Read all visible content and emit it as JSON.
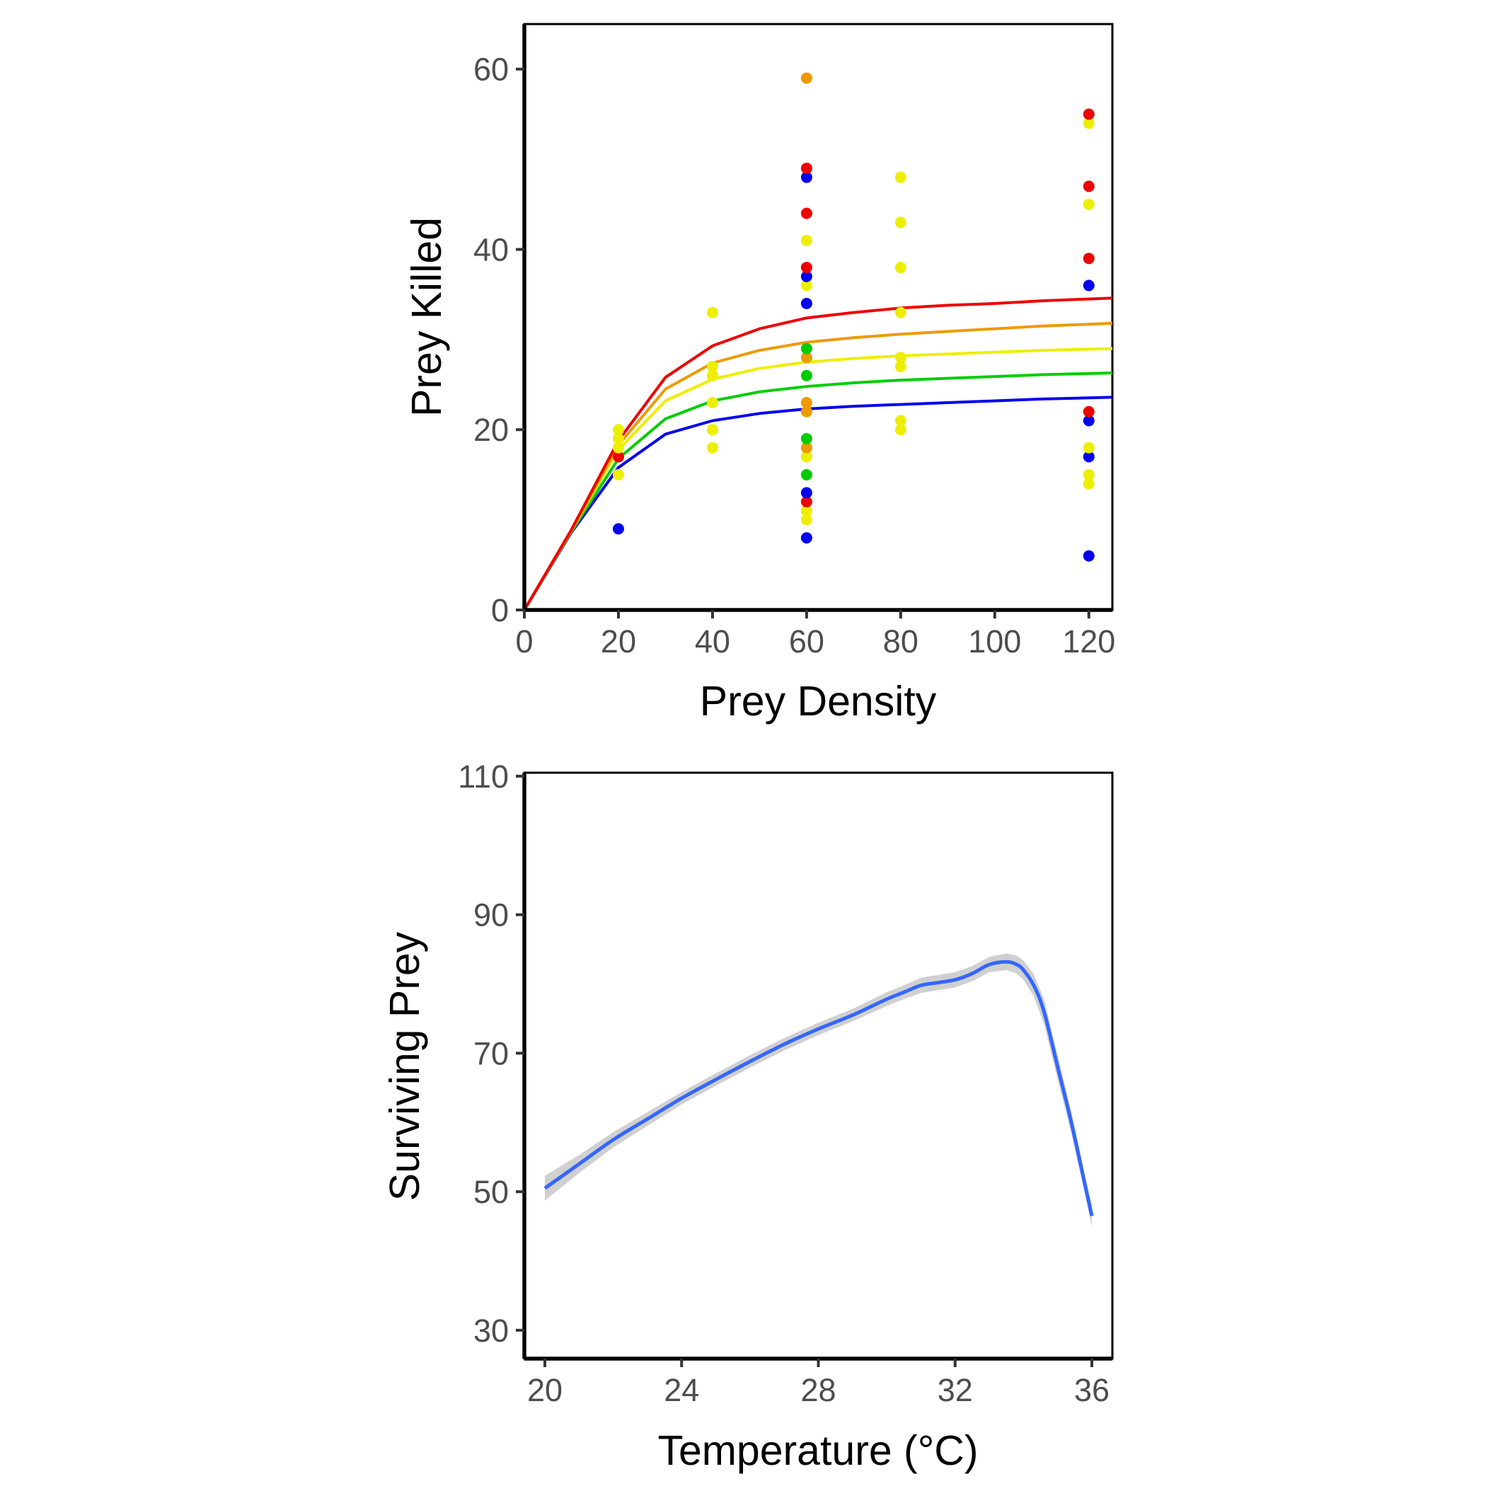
{
  "chart_data": [
    {
      "type": "scatter",
      "xlabel": "Prey Density",
      "ylabel": "Prey Killed",
      "xlim": [
        0,
        125
      ],
      "ylim": [
        0,
        65
      ],
      "xticks": [
        0,
        20,
        40,
        60,
        80,
        100,
        120
      ],
      "yticks": [
        0,
        20,
        40,
        60
      ],
      "grid": false,
      "legend": "none",
      "points": [
        {
          "x": 20,
          "y": 9,
          "color": "#0000ee"
        },
        {
          "x": 20,
          "y": 15,
          "color": "#eeee00"
        },
        {
          "x": 20,
          "y": 17,
          "color": "#ee0000"
        },
        {
          "x": 20,
          "y": 18,
          "color": "#eeee00"
        },
        {
          "x": 20,
          "y": 19,
          "color": "#eeee00"
        },
        {
          "x": 20,
          "y": 20,
          "color": "#eeee00"
        },
        {
          "x": 40,
          "y": 18,
          "color": "#eeee00"
        },
        {
          "x": 40,
          "y": 20,
          "color": "#eeee00"
        },
        {
          "x": 40,
          "y": 23,
          "color": "#eeee00"
        },
        {
          "x": 40,
          "y": 26,
          "color": "#eeee00"
        },
        {
          "x": 40,
          "y": 27,
          "color": "#eeee00"
        },
        {
          "x": 40,
          "y": 33,
          "color": "#eeee00"
        },
        {
          "x": 60,
          "y": 8,
          "color": "#0000ee"
        },
        {
          "x": 60,
          "y": 10,
          "color": "#eeee00"
        },
        {
          "x": 60,
          "y": 11,
          "color": "#eeee00"
        },
        {
          "x": 60,
          "y": 12,
          "color": "#ee0000"
        },
        {
          "x": 60,
          "y": 13,
          "color": "#0000ee"
        },
        {
          "x": 60,
          "y": 15,
          "color": "#00cd00"
        },
        {
          "x": 60,
          "y": 17,
          "color": "#eeee00"
        },
        {
          "x": 60,
          "y": 18,
          "color": "#ee9a00"
        },
        {
          "x": 60,
          "y": 19,
          "color": "#00cd00"
        },
        {
          "x": 60,
          "y": 22,
          "color": "#ee9a00"
        },
        {
          "x": 60,
          "y": 23,
          "color": "#ee9a00"
        },
        {
          "x": 60,
          "y": 26,
          "color": "#00cd00"
        },
        {
          "x": 60,
          "y": 28,
          "color": "#ee9a00"
        },
        {
          "x": 60,
          "y": 29,
          "color": "#00cd00"
        },
        {
          "x": 60,
          "y": 34,
          "color": "#0000ee"
        },
        {
          "x": 60,
          "y": 36,
          "color": "#eeee00"
        },
        {
          "x": 60,
          "y": 37,
          "color": "#0000ee"
        },
        {
          "x": 60,
          "y": 38,
          "color": "#ee0000"
        },
        {
          "x": 60,
          "y": 41,
          "color": "#eeee00"
        },
        {
          "x": 60,
          "y": 44,
          "color": "#ee0000"
        },
        {
          "x": 60,
          "y": 48,
          "color": "#0000ee"
        },
        {
          "x": 60,
          "y": 49,
          "color": "#ee0000"
        },
        {
          "x": 60,
          "y": 59,
          "color": "#ee9a00"
        },
        {
          "x": 80,
          "y": 20,
          "color": "#eeee00"
        },
        {
          "x": 80,
          "y": 21,
          "color": "#eeee00"
        },
        {
          "x": 80,
          "y": 27,
          "color": "#eeee00"
        },
        {
          "x": 80,
          "y": 28,
          "color": "#eeee00"
        },
        {
          "x": 80,
          "y": 33,
          "color": "#eeee00"
        },
        {
          "x": 80,
          "y": 38,
          "color": "#eeee00"
        },
        {
          "x": 80,
          "y": 43,
          "color": "#eeee00"
        },
        {
          "x": 80,
          "y": 48,
          "color": "#eeee00"
        },
        {
          "x": 120,
          "y": 6,
          "color": "#0000ee"
        },
        {
          "x": 120,
          "y": 14,
          "color": "#eeee00"
        },
        {
          "x": 120,
          "y": 15,
          "color": "#eeee00"
        },
        {
          "x": 120,
          "y": 17,
          "color": "#0000ee"
        },
        {
          "x": 120,
          "y": 18,
          "color": "#eeee00"
        },
        {
          "x": 120,
          "y": 21,
          "color": "#0000ee"
        },
        {
          "x": 120,
          "y": 22,
          "color": "#ee0000"
        },
        {
          "x": 120,
          "y": 36,
          "color": "#0000ee"
        },
        {
          "x": 120,
          "y": 39,
          "color": "#ee0000"
        },
        {
          "x": 120,
          "y": 45,
          "color": "#eeee00"
        },
        {
          "x": 120,
          "y": 47,
          "color": "#ee0000"
        },
        {
          "x": 120,
          "y": 54,
          "color": "#eeee00"
        },
        {
          "x": 120,
          "y": 55,
          "color": "#ee0000"
        }
      ],
      "curves": [
        {
          "color": "#0000ee",
          "x": [
            0,
            10,
            20,
            30,
            40,
            50,
            60,
            70,
            80,
            90,
            100,
            110,
            125
          ],
          "y": [
            0,
            8.6,
            15.8,
            19.5,
            21.0,
            21.8,
            22.3,
            22.6,
            22.8,
            23.0,
            23.2,
            23.4,
            23.6
          ]
        },
        {
          "color": "#00cd00",
          "x": [
            0,
            10,
            20,
            30,
            40,
            50,
            60,
            70,
            80,
            90,
            100,
            110,
            125
          ],
          "y": [
            0,
            8.7,
            16.8,
            21.2,
            23.2,
            24.2,
            24.8,
            25.2,
            25.5,
            25.7,
            25.9,
            26.1,
            26.3
          ]
        },
        {
          "color": "#eeee00",
          "x": [
            0,
            10,
            20,
            30,
            40,
            50,
            60,
            70,
            80,
            90,
            100,
            110,
            125
          ],
          "y": [
            0,
            8.8,
            17.8,
            23.2,
            25.6,
            26.8,
            27.5,
            27.9,
            28.2,
            28.4,
            28.6,
            28.8,
            29.0
          ]
        },
        {
          "color": "#ee9a00",
          "x": [
            0,
            10,
            20,
            30,
            40,
            50,
            60,
            70,
            80,
            90,
            100,
            110,
            125
          ],
          "y": [
            0,
            8.8,
            18.3,
            24.5,
            27.4,
            28.8,
            29.7,
            30.2,
            30.6,
            30.9,
            31.2,
            31.5,
            31.8
          ]
        },
        {
          "color": "#ee0000",
          "x": [
            0,
            10,
            20,
            30,
            40,
            50,
            60,
            70,
            80,
            90,
            100,
            110,
            125
          ],
          "y": [
            0,
            8.9,
            18.8,
            25.8,
            29.3,
            31.2,
            32.4,
            33.0,
            33.5,
            33.8,
            34.0,
            34.3,
            34.6
          ]
        }
      ]
    },
    {
      "type": "line",
      "xlabel": "Temperature (°C)",
      "ylabel": "Surviving Prey",
      "xlim": [
        19.4,
        36.6
      ],
      "ylim": [
        25.9,
        110.5
      ],
      "xticks": [
        20,
        24,
        28,
        32,
        36
      ],
      "yticks": [
        30,
        50,
        70,
        90,
        110
      ],
      "grid": false,
      "legend": "none",
      "series_color": "#3366ff",
      "band_color": "#c8c8c8",
      "x": [
        20,
        21,
        22,
        23,
        24,
        25,
        26,
        27,
        28,
        29,
        30,
        30.5,
        31,
        31.5,
        32,
        32.5,
        33,
        33.5,
        33.8,
        34,
        34.3,
        34.6,
        35,
        35.4,
        35.8,
        36
      ],
      "y": [
        50.5,
        54.0,
        57.5,
        60.5,
        63.5,
        66.2,
        68.8,
        71.3,
        73.5,
        75.5,
        77.8,
        78.8,
        79.8,
        80.2,
        80.6,
        81.5,
        82.8,
        83.2,
        82.8,
        82.0,
        79.8,
        76.0,
        68.0,
        60.0,
        51.0,
        46.5
      ],
      "band_half_width": [
        1.8,
        1.3,
        1.1,
        1.0,
        0.9,
        0.9,
        0.9,
        0.9,
        0.9,
        0.9,
        1.0,
        1.0,
        1.1,
        1.1,
        1.1,
        1.1,
        1.1,
        1.2,
        1.3,
        1.4,
        1.6,
        1.8,
        1.8,
        1.6,
        1.4,
        1.6
      ]
    }
  ]
}
